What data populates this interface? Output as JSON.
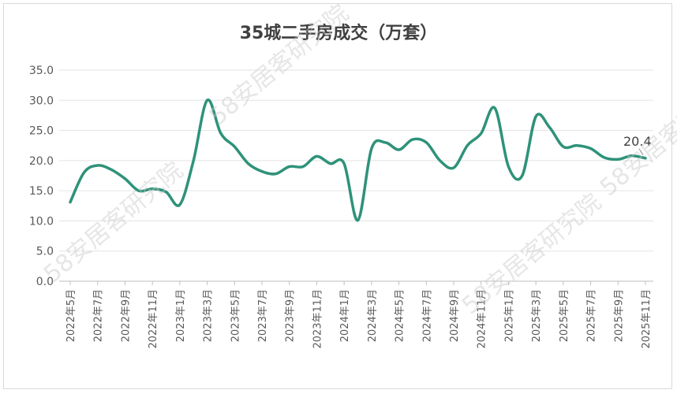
{
  "chart_data": {
    "type": "line",
    "title": "35城二手房成交（万套）",
    "ylim": [
      0,
      35
    ],
    "yticks": [
      "0.0",
      "5.0",
      "10.0",
      "15.0",
      "20.0",
      "25.0",
      "30.0",
      "35.0"
    ],
    "xtick_labels": [
      "2022年5月",
      "2022年7月",
      "2022年9月",
      "2022年11月",
      "2023年1月",
      "2023年3月",
      "2023年5月",
      "2023年7月",
      "2023年9月",
      "2023年11月",
      "2024年1月",
      "2024年3月",
      "2024年5月",
      "2024年7月",
      "2024年9月",
      "2024年11月",
      "2025年1月",
      "2025年3月",
      "2025年5月",
      "2025年7月",
      "2025年9月",
      "2025年11月"
    ],
    "series": [
      {
        "color": "#2e9279",
        "values": [
          13.1,
          18.0,
          19.2,
          18.5,
          17.0,
          15.0,
          15.3,
          14.8,
          12.7,
          20.0,
          30.0,
          24.5,
          22.3,
          19.5,
          18.2,
          17.8,
          19.0,
          19.0,
          20.7,
          19.5,
          19.5,
          10.1,
          22.0,
          23.0,
          21.8,
          23.5,
          23.0,
          20.0,
          18.8,
          22.5,
          24.5,
          28.7,
          19.0,
          17.5,
          27.3,
          25.5,
          22.3,
          22.5,
          22.0,
          20.5,
          20.2,
          20.8,
          20.4
        ]
      }
    ],
    "annotation": {
      "label": "20.4",
      "point_index": 42
    },
    "grid": true,
    "watermark": "58安居客研究院"
  }
}
